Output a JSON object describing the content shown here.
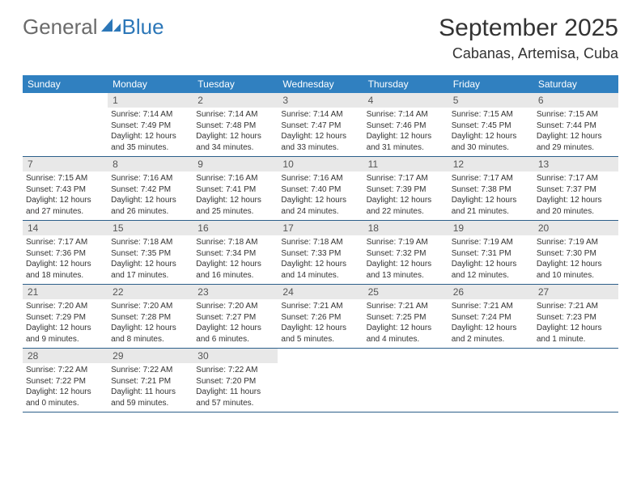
{
  "logo": {
    "g": "General",
    "b": "Blue"
  },
  "title": "September 2025",
  "location": "Cabanas, Artemisa, Cuba",
  "dayNames": [
    "Sunday",
    "Monday",
    "Tuesday",
    "Wednesday",
    "Thursday",
    "Friday",
    "Saturday"
  ],
  "colors": {
    "headerBg": "#3080c0",
    "headerText": "#ffffff",
    "dayNumBg": "#e8e8e8",
    "borderColor": "#2c5f8a",
    "bodyText": "#333333",
    "logoGray": "#6b6b6b",
    "logoBlue": "#2c77b8"
  },
  "typography": {
    "title_fontsize": 30,
    "location_fontsize": 18,
    "dayheader_fontsize": 12,
    "daynum_fontsize": 12,
    "body_fontsize": 10
  },
  "layout": {
    "cols": 7,
    "rows": 5,
    "cell_min_height": 78
  },
  "weeks": [
    [
      null,
      {
        "n": "1",
        "sr": "7:14 AM",
        "ss": "7:49 PM",
        "dl": "12 hours and 35 minutes."
      },
      {
        "n": "2",
        "sr": "7:14 AM",
        "ss": "7:48 PM",
        "dl": "12 hours and 34 minutes."
      },
      {
        "n": "3",
        "sr": "7:14 AM",
        "ss": "7:47 PM",
        "dl": "12 hours and 33 minutes."
      },
      {
        "n": "4",
        "sr": "7:14 AM",
        "ss": "7:46 PM",
        "dl": "12 hours and 31 minutes."
      },
      {
        "n": "5",
        "sr": "7:15 AM",
        "ss": "7:45 PM",
        "dl": "12 hours and 30 minutes."
      },
      {
        "n": "6",
        "sr": "7:15 AM",
        "ss": "7:44 PM",
        "dl": "12 hours and 29 minutes."
      }
    ],
    [
      {
        "n": "7",
        "sr": "7:15 AM",
        "ss": "7:43 PM",
        "dl": "12 hours and 27 minutes."
      },
      {
        "n": "8",
        "sr": "7:16 AM",
        "ss": "7:42 PM",
        "dl": "12 hours and 26 minutes."
      },
      {
        "n": "9",
        "sr": "7:16 AM",
        "ss": "7:41 PM",
        "dl": "12 hours and 25 minutes."
      },
      {
        "n": "10",
        "sr": "7:16 AM",
        "ss": "7:40 PM",
        "dl": "12 hours and 24 minutes."
      },
      {
        "n": "11",
        "sr": "7:17 AM",
        "ss": "7:39 PM",
        "dl": "12 hours and 22 minutes."
      },
      {
        "n": "12",
        "sr": "7:17 AM",
        "ss": "7:38 PM",
        "dl": "12 hours and 21 minutes."
      },
      {
        "n": "13",
        "sr": "7:17 AM",
        "ss": "7:37 PM",
        "dl": "12 hours and 20 minutes."
      }
    ],
    [
      {
        "n": "14",
        "sr": "7:17 AM",
        "ss": "7:36 PM",
        "dl": "12 hours and 18 minutes."
      },
      {
        "n": "15",
        "sr": "7:18 AM",
        "ss": "7:35 PM",
        "dl": "12 hours and 17 minutes."
      },
      {
        "n": "16",
        "sr": "7:18 AM",
        "ss": "7:34 PM",
        "dl": "12 hours and 16 minutes."
      },
      {
        "n": "17",
        "sr": "7:18 AM",
        "ss": "7:33 PM",
        "dl": "12 hours and 14 minutes."
      },
      {
        "n": "18",
        "sr": "7:19 AM",
        "ss": "7:32 PM",
        "dl": "12 hours and 13 minutes."
      },
      {
        "n": "19",
        "sr": "7:19 AM",
        "ss": "7:31 PM",
        "dl": "12 hours and 12 minutes."
      },
      {
        "n": "20",
        "sr": "7:19 AM",
        "ss": "7:30 PM",
        "dl": "12 hours and 10 minutes."
      }
    ],
    [
      {
        "n": "21",
        "sr": "7:20 AM",
        "ss": "7:29 PM",
        "dl": "12 hours and 9 minutes."
      },
      {
        "n": "22",
        "sr": "7:20 AM",
        "ss": "7:28 PM",
        "dl": "12 hours and 8 minutes."
      },
      {
        "n": "23",
        "sr": "7:20 AM",
        "ss": "7:27 PM",
        "dl": "12 hours and 6 minutes."
      },
      {
        "n": "24",
        "sr": "7:21 AM",
        "ss": "7:26 PM",
        "dl": "12 hours and 5 minutes."
      },
      {
        "n": "25",
        "sr": "7:21 AM",
        "ss": "7:25 PM",
        "dl": "12 hours and 4 minutes."
      },
      {
        "n": "26",
        "sr": "7:21 AM",
        "ss": "7:24 PM",
        "dl": "12 hours and 2 minutes."
      },
      {
        "n": "27",
        "sr": "7:21 AM",
        "ss": "7:23 PM",
        "dl": "12 hours and 1 minute."
      }
    ],
    [
      {
        "n": "28",
        "sr": "7:22 AM",
        "ss": "7:22 PM",
        "dl": "12 hours and 0 minutes."
      },
      {
        "n": "29",
        "sr": "7:22 AM",
        "ss": "7:21 PM",
        "dl": "11 hours and 59 minutes."
      },
      {
        "n": "30",
        "sr": "7:22 AM",
        "ss": "7:20 PM",
        "dl": "11 hours and 57 minutes."
      },
      null,
      null,
      null,
      null
    ]
  ],
  "labels": {
    "sunrise": "Sunrise:",
    "sunset": "Sunset:",
    "daylight": "Daylight:"
  }
}
